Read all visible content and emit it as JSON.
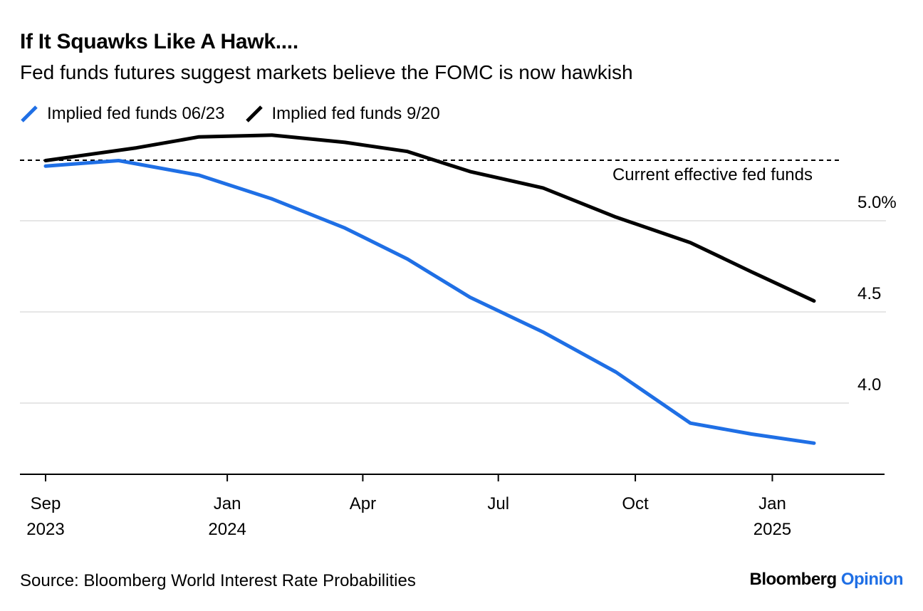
{
  "title": "If It Squawks Like A Hawk....",
  "subtitle": "Fed funds futures suggest markets believe the FOMC is now hawkish",
  "source": "Source: Bloomberg World Interest Rate Probabilities",
  "brand": {
    "name": "Bloomberg",
    "suffix": "Opinion",
    "suffix_color": "#1f6fe5"
  },
  "chart_data": {
    "type": "line",
    "title": "If It Squawks Like A Hawk....",
    "subtitle": "Fed funds futures suggest markets believe the FOMC is now hawkish",
    "xlabel": "",
    "ylabel": "",
    "x_range": [
      "2023-08-15",
      "2025-03-10"
    ],
    "ylim": [
      3.6,
      5.4
    ],
    "y_ticks": [
      {
        "value": 4.0,
        "label": "4.0"
      },
      {
        "value": 4.5,
        "label": "4.5"
      },
      {
        "value": 5.0,
        "label": "5.0%"
      }
    ],
    "x_ticks": [
      {
        "date": "2023-09-01",
        "label": "Sep",
        "year": "2023"
      },
      {
        "date": "2024-01-01",
        "label": "Jan",
        "year": "2024"
      },
      {
        "date": "2024-04-01",
        "label": "Apr",
        "year": ""
      },
      {
        "date": "2024-07-01",
        "label": "Jul",
        "year": ""
      },
      {
        "date": "2024-10-01",
        "label": "Oct",
        "year": ""
      },
      {
        "date": "2025-01-01",
        "label": "Jan",
        "year": "2025"
      }
    ],
    "grid": true,
    "legend_position": "top-left",
    "reference_line": {
      "value": 5.33,
      "label": "Current effective fed funds",
      "style": "dashed"
    },
    "series": [
      {
        "name": "Implied fed funds 06/23",
        "color": "#1f6fe5",
        "points": [
          {
            "x": "2023-09-01",
            "y": 5.3
          },
          {
            "x": "2023-10-20",
            "y": 5.33
          },
          {
            "x": "2023-12-13",
            "y": 5.25
          },
          {
            "x": "2024-01-31",
            "y": 5.12
          },
          {
            "x": "2024-03-20",
            "y": 4.96
          },
          {
            "x": "2024-05-01",
            "y": 4.79
          },
          {
            "x": "2024-06-12",
            "y": 4.58
          },
          {
            "x": "2024-07-31",
            "y": 4.39
          },
          {
            "x": "2024-09-18",
            "y": 4.17
          },
          {
            "x": "2024-11-07",
            "y": 3.89
          },
          {
            "x": "2024-12-18",
            "y": 3.83
          },
          {
            "x": "2025-01-29",
            "y": 3.78
          }
        ]
      },
      {
        "name": "Implied fed funds 9/20",
        "color": "#000000",
        "points": [
          {
            "x": "2023-09-01",
            "y": 5.33
          },
          {
            "x": "2023-11-01",
            "y": 5.4
          },
          {
            "x": "2023-12-13",
            "y": 5.46
          },
          {
            "x": "2024-01-31",
            "y": 5.47
          },
          {
            "x": "2024-03-20",
            "y": 5.43
          },
          {
            "x": "2024-05-01",
            "y": 5.38
          },
          {
            "x": "2024-06-12",
            "y": 5.27
          },
          {
            "x": "2024-07-31",
            "y": 5.18
          },
          {
            "x": "2024-09-18",
            "y": 5.02
          },
          {
            "x": "2024-11-07",
            "y": 4.88
          },
          {
            "x": "2024-12-18",
            "y": 4.72
          },
          {
            "x": "2025-01-29",
            "y": 4.56
          }
        ]
      }
    ]
  }
}
